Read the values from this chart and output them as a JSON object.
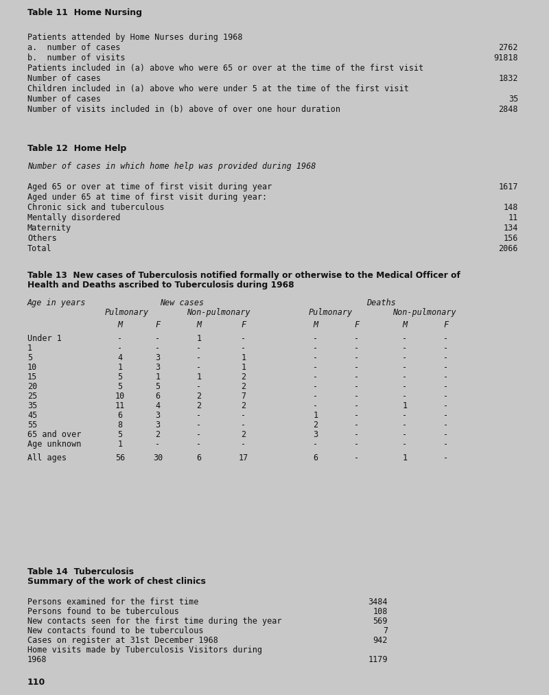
{
  "bg_color": "#c8c8c8",
  "text_color": "#222222",
  "page_number": "110",
  "table11": {
    "title": "Table 11  Home Nursing",
    "rows": [
      {
        "label": "Patients attended by Home Nurses during 1968",
        "value": ""
      },
      {
        "label": "a.  number of cases",
        "value": "2762"
      },
      {
        "label": "b.  number of visits",
        "value": "91818"
      },
      {
        "label": "Patients included in (a) above who were 65 or over at the time of the first visit",
        "value": ""
      },
      {
        "label": "Number of cases",
        "value": "1832"
      },
      {
        "label": "Children included in (a) above who were under 5 at the time of the first visit",
        "value": ""
      },
      {
        "label": "Number of cases",
        "value": "35"
      },
      {
        "label": "Number of visits included in (b) above of over one hour duration",
        "value": "2848"
      }
    ]
  },
  "table12": {
    "title": "Table 12  Home Help",
    "subtitle": "Number of cases in which home help was provided during 1968",
    "rows": [
      {
        "label": "Aged 65 or over at time of first visit during year",
        "value": "1617"
      },
      {
        "label": "Aged under 65 at time of first visit during year:",
        "value": ""
      },
      {
        "label": "Chronic sick and tuberculous",
        "value": "148"
      },
      {
        "label": "Mentally disordered",
        "value": "11"
      },
      {
        "label": "Maternity",
        "value": "134"
      },
      {
        "label": "Others",
        "value": "156"
      },
      {
        "label": "Total",
        "value": "2066"
      }
    ]
  },
  "table13": {
    "title_line1": "Table 13  New cases of Tuberculosis notified formally or otherwise to the Medical Officer of",
    "title_line2": "Health and Deaths ascribed to Tuberculosis during 1968",
    "mf_header": [
      "M",
      "F",
      "M",
      "F",
      "M",
      "F",
      "M",
      "F"
    ],
    "ages": [
      "Under 1",
      "1",
      "5",
      "10",
      "15",
      "20",
      "25",
      "35",
      "45",
      "55",
      "65 and over",
      "Age unknown",
      "",
      "All ages"
    ],
    "data": [
      [
        "-",
        "-",
        "1",
        "-",
        "-",
        "-",
        "-",
        "-"
      ],
      [
        "-",
        "-",
        "-",
        "-",
        "-",
        "-",
        "-",
        "-"
      ],
      [
        "4",
        "3",
        "-",
        "1",
        "-",
        "-",
        "-",
        "-"
      ],
      [
        "1",
        "3",
        "-",
        "1",
        "-",
        "-",
        "-",
        "-"
      ],
      [
        "5",
        "1",
        "1",
        "2",
        "-",
        "-",
        "-",
        "-"
      ],
      [
        "5",
        "5",
        "-",
        "2",
        "-",
        "-",
        "-",
        "-"
      ],
      [
        "10",
        "6",
        "2",
        "7",
        "-",
        "-",
        "-",
        "-"
      ],
      [
        "11",
        "4",
        "2",
        "2",
        "-",
        "-",
        "1",
        "-"
      ],
      [
        "6",
        "3",
        "-",
        "-",
        "1",
        "-",
        "-",
        "-"
      ],
      [
        "8",
        "3",
        "-",
        "-",
        "2",
        "-",
        "-",
        "-"
      ],
      [
        "5",
        "2",
        "-",
        "2",
        "3",
        "-",
        "-",
        "-"
      ],
      [
        "1",
        "-",
        "-",
        "-",
        "-",
        "-",
        "-",
        "-"
      ],
      [
        "",
        "",
        "",
        "",
        "",
        "",
        "",
        ""
      ],
      [
        "56",
        "30",
        "6",
        "17",
        "6",
        "-",
        "1",
        "-"
      ]
    ]
  },
  "table14": {
    "title": "Table 14  Tuberculosis",
    "subtitle": "Summary of the work of chest clinics",
    "rows": [
      {
        "label": "Persons examined for the first time",
        "value": "3484"
      },
      {
        "label": "Persons found to be tuberculous",
        "value": "108"
      },
      {
        "label": "New contacts seen for the first time during the year",
        "value": "569"
      },
      {
        "label": "New contacts found to be tuberculous",
        "value": "7"
      },
      {
        "label": "Cases on register at 31st December 1968",
        "value": "942"
      },
      {
        "label": "Home visits made by Tuberculosis Visitors during",
        "value": ""
      },
      {
        "label": "1968",
        "value": "1179"
      }
    ]
  }
}
